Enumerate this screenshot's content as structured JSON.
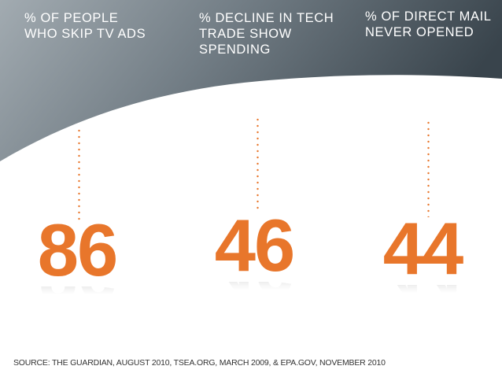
{
  "colors": {
    "accent": "#e8762b",
    "header_dark": "#3f4a52",
    "header_light": "#8a949b",
    "label_text": "#ffffff",
    "reflection": "#9a9a9a",
    "source_text": "#333333"
  },
  "stats": [
    {
      "label": "% OF PEOPLE\nWHO SKIP TV ADS",
      "value": "86"
    },
    {
      "label": "% DECLINE IN TECH\nTRADE SHOW\nSPENDING",
      "value": "46"
    },
    {
      "label": "% OF DIRECT MAIL\nNEVER OPENED",
      "value": "44"
    }
  ],
  "source": "SOURCE: THE GUARDIAN, AUGUST 2010, TSEA.ORG, MARCH 2009, & EPA.GOV, NOVEMBER 2010"
}
